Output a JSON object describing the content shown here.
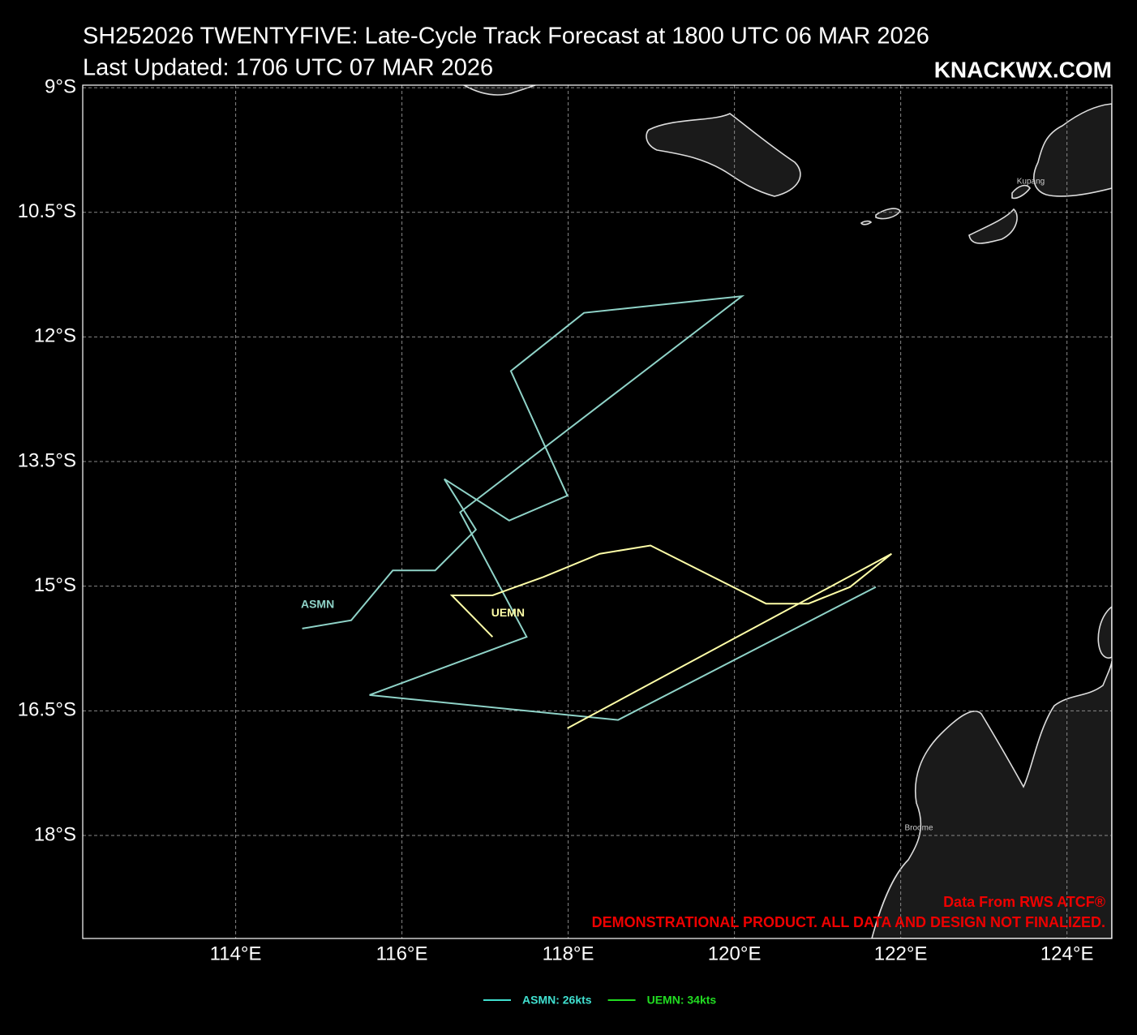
{
  "chart_data": {
    "type": "line",
    "title": "SH252026 TWENTYFIVE: Late-Cycle Track Forecast at 1800 UTC 06 MAR 2026",
    "subtitle": "Last Updated: 1706 UTC 07 MAR 2026",
    "brand": "KNACKWX.COM",
    "source": "Data From RWS ATCF®",
    "disclaimer": "DEMONSTRATIONAL PRODUCT. ALL DATA AND DESIGN NOT FINALIZED.",
    "places": [
      "Kupang",
      "Broome"
    ],
    "grid": true,
    "xlim": [
      112.16,
      124.54
    ],
    "ylim": [
      -19.24,
      -8.97
    ],
    "xticks": [
      {
        "value": 114,
        "label": "114°E"
      },
      {
        "value": 116,
        "label": "116°E"
      },
      {
        "value": 118,
        "label": "118°E"
      },
      {
        "value": 120,
        "label": "120°E"
      },
      {
        "value": 122,
        "label": "122°E"
      },
      {
        "value": 124,
        "label": "124°E"
      }
    ],
    "yticks": [
      {
        "value": -9,
        "label": "9°S"
      },
      {
        "value": -10.5,
        "label": "10.5°S"
      },
      {
        "value": -12,
        "label": "12°S"
      },
      {
        "value": -13.5,
        "label": "13.5°S"
      },
      {
        "value": -15,
        "label": "15°S"
      },
      {
        "value": -16.5,
        "label": "16.5°S"
      },
      {
        "value": -18,
        "label": "18°S"
      }
    ],
    "series": [
      {
        "name": "ASMN",
        "color": "#8fd3c8",
        "x": [
          114.8,
          115.39,
          115.89,
          116.4,
          116.89,
          116.51,
          117.29,
          117.99,
          117.31,
          118.19,
          120.09,
          116.7,
          117.5,
          115.61,
          118.6,
          121.7
        ],
        "values": [
          -15.51,
          -15.41,
          -14.81,
          -14.81,
          -14.32,
          -13.71,
          -14.21,
          -13.91,
          -12.41,
          -11.71,
          -11.51,
          -14.11,
          -15.61,
          -16.31,
          -16.61,
          -15.01
        ]
      },
      {
        "name": "UEMN",
        "color": "#ffffa8",
        "x": [
          117.09,
          116.6,
          117.09,
          117.7,
          118.38,
          118.99,
          120.38,
          120.89,
          121.39,
          121.89,
          117.99
        ],
        "values": [
          -15.61,
          -15.11,
          -15.11,
          -14.89,
          -14.61,
          -14.51,
          -15.21,
          -15.21,
          -15.01,
          -14.61,
          -16.71
        ]
      }
    ],
    "legend": [
      {
        "label": "ASMN: 26kts",
        "color": "#40e0d0"
      },
      {
        "label": "UEMN: 34kts",
        "color": "#22dd22"
      }
    ]
  }
}
